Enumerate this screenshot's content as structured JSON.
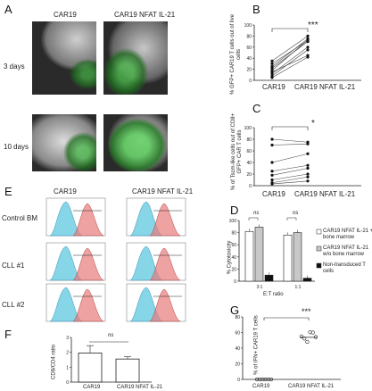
{
  "panels": {
    "A": "A",
    "B": "B",
    "C": "C",
    "D": "D",
    "E": "E",
    "F": "F",
    "G": "G"
  },
  "panel_a": {
    "col_car19": "CAR19",
    "col_nfat": "CAR19 NFAT IL-21",
    "row_3days": "3 days",
    "row_10days": "10 days"
  },
  "panel_e": {
    "col_car19": "CAR19",
    "col_nfat": "CAR19 NFAT IL-21",
    "rows": [
      "Control BM",
      "CLL #1",
      "CLL #2"
    ],
    "colors": {
      "cyan": "#5ec8e0",
      "red": "#e87a7a"
    }
  },
  "chart_data": [
    {
      "id": "B",
      "type": "scatter",
      "ylabel": "% GFP+ CAR19 T cells out of live cells",
      "categories": [
        "CAR19",
        "CAR19 NFAT IL-21"
      ],
      "ylim": [
        0,
        100
      ],
      "yticks": [
        0,
        20,
        40,
        60,
        80,
        100
      ],
      "significance": "***",
      "pairs": [
        [
          35,
          80
        ],
        [
          30,
          72
        ],
        [
          25,
          75
        ],
        [
          22,
          70
        ],
        [
          18,
          73
        ],
        [
          15,
          45
        ],
        [
          12,
          60
        ],
        [
          8,
          55
        ],
        [
          5,
          42
        ]
      ]
    },
    {
      "id": "C",
      "type": "scatter",
      "ylabel": "% of Tscm-like cells out of CD8+ GFP+ CAR T cells",
      "categories": [
        "CAR19",
        "CAR19 NFAT IL-21"
      ],
      "ylim": [
        0,
        100
      ],
      "yticks": [
        0,
        20,
        40,
        60,
        80,
        100
      ],
      "significance": "*",
      "pairs": [
        [
          80,
          75
        ],
        [
          70,
          72
        ],
        [
          40,
          55
        ],
        [
          25,
          35
        ],
        [
          18,
          30
        ],
        [
          10,
          20
        ],
        [
          5,
          15
        ],
        [
          3,
          8
        ]
      ]
    },
    {
      "id": "D",
      "type": "bar",
      "ylabel": "% Cytotoxicity",
      "xlabel": "E:T ratio",
      "categories": [
        "3:1",
        "1:1"
      ],
      "ylim": [
        0,
        100
      ],
      "yticks": [
        0,
        20,
        40,
        60,
        80,
        100
      ],
      "series": [
        {
          "name": "CAR19 NFAT IL-21 + bone marrow",
          "values": [
            82,
            76
          ],
          "color": "#ffffff"
        },
        {
          "name": "CAR19 NFAT IL-21 w/o bone marrow",
          "values": [
            89,
            80
          ],
          "color": "#c8c8c8"
        },
        {
          "name": "Non-transduced T cells",
          "values": [
            10,
            5
          ],
          "color": "#111111"
        }
      ],
      "significance": [
        "ns",
        "ns"
      ]
    },
    {
      "id": "F",
      "type": "bar",
      "ylabel": "CD8/CD4 ratio",
      "categories": [
        "CAR19",
        "CAR19 NFAT IL-21"
      ],
      "ylim": [
        0,
        3
      ],
      "yticks": [
        0,
        1,
        2,
        3
      ],
      "values": [
        1.95,
        1.55
      ],
      "errors": [
        0.5,
        0.15
      ],
      "significance": "ns"
    },
    {
      "id": "G",
      "type": "scatter",
      "ylabel": "% of IFN+ CAR19 T cells",
      "categories": [
        "CAR19",
        "CAR19 NFAT IL-21"
      ],
      "ylim": [
        0,
        80
      ],
      "yticks": [
        0,
        20,
        40,
        60,
        80
      ],
      "significance": "***",
      "points": [
        [
          0,
          0,
          0,
          0,
          0,
          0
        ],
        [
          55,
          50,
          48,
          58,
          60,
          52
        ]
      ]
    }
  ]
}
